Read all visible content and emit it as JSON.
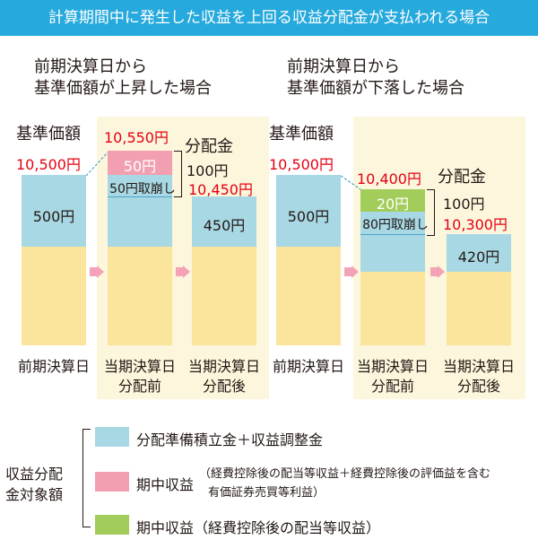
{
  "title": "計算期間中に発生した収益を上回る収益分配金が支払われる場合",
  "left_case": {
    "heading_line1": "前期決算日から",
    "heading_line2": "基準価額が上昇した場合",
    "nav_label": "基準価額",
    "prev_value": "10,500円",
    "prev_blue": "500円",
    "pre_value": "10,550円",
    "income_label": "50円",
    "drawdown_label": "50円取崩し",
    "dist_label": "分配金",
    "dist_amount": "100円",
    "post_value": "10,450円",
    "post_blue": "450円"
  },
  "right_case": {
    "heading_line1": "前期決算日から",
    "heading_line2": "基準価額が下落した場合",
    "nav_label": "基準価額",
    "prev_value": "10,500円",
    "prev_blue": "500円",
    "pre_value": "10,400円",
    "income_label": "20円",
    "drawdown_label": "80円取崩し",
    "dist_label": "分配金",
    "dist_amount": "100円",
    "post_value": "10,300円",
    "post_blue": "420円"
  },
  "captions": {
    "prev": "前期決算日",
    "pre_line1": "当期決算日",
    "pre_line2": "分配前",
    "post_line1": "当期決算日",
    "post_line2": "分配後"
  },
  "legend": {
    "group_line1": "収益分配",
    "group_line2": "金対象額",
    "item1": "分配準備積立金＋収益調整金",
    "item2_title": "期中収益",
    "item2_note_line1": "（経費控除後の配当等収益＋経費控除後の評価益を含む",
    "item2_note_line2": "有価証券売買等利益）",
    "item3": "期中収益（経費控除後の配当等収益）"
  },
  "colors": {
    "header": "#26a9dc",
    "blue_segment": "#a7d8e4",
    "yellow_segment": "#fbe49c",
    "pink_segment": "#f29fb2",
    "green_segment": "#a2cd5a",
    "panel": "#fbf6dc",
    "arrow": "#f4a3b6",
    "value_text": "#e60012"
  }
}
